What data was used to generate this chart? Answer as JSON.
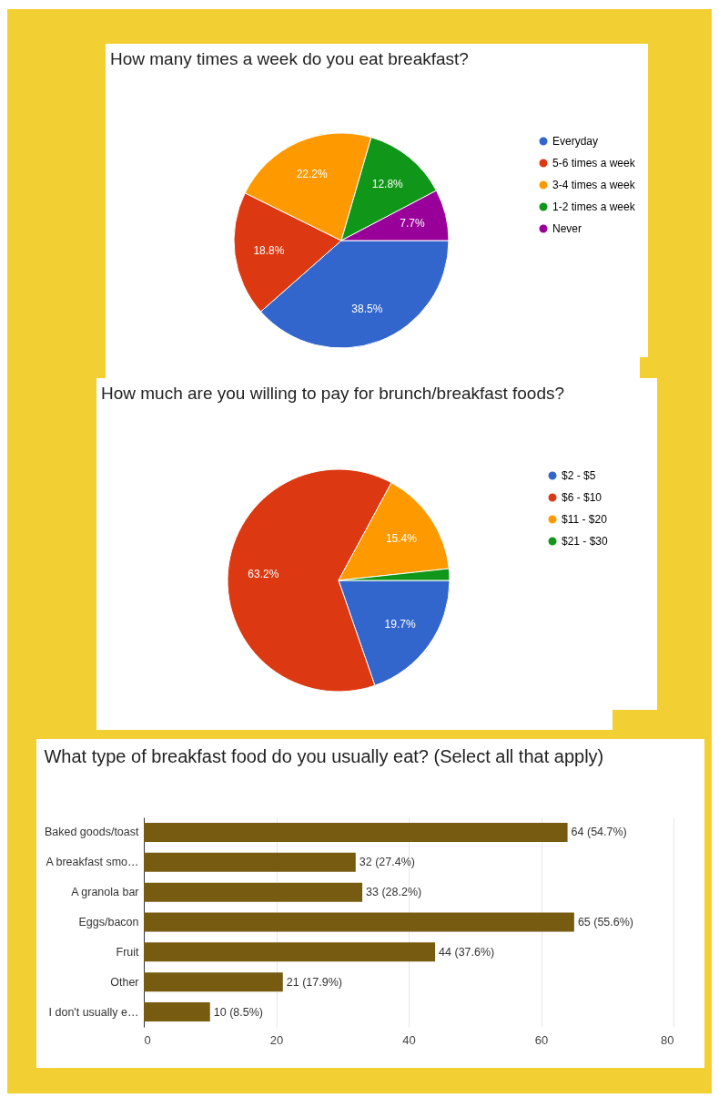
{
  "chart_data": [
    {
      "type": "pie",
      "title": "How many times a week do you eat breakfast?",
      "categories": [
        "Everyday",
        "5-6 times a week",
        "3-4 times a week",
        "1-2 times a week",
        "Never"
      ],
      "values": [
        38.5,
        18.8,
        22.2,
        12.8,
        7.7
      ],
      "colors": [
        "#3366cc",
        "#dc3912",
        "#ff9900",
        "#109618",
        "#990099"
      ],
      "value_labels": [
        "38.5%",
        "18.8%",
        "22.2%",
        "12.8%",
        "7.7%"
      ],
      "legend": "right"
    },
    {
      "type": "pie",
      "title": "How much are you willing to pay for brunch/breakfast foods?",
      "categories": [
        "$2 - $5",
        "$6 - $10",
        "$11 - $20",
        "$21 - $30"
      ],
      "values": [
        19.7,
        63.2,
        15.4,
        1.7
      ],
      "colors": [
        "#3366cc",
        "#dc3912",
        "#ff9900",
        "#109618"
      ],
      "value_labels": [
        "19.7%",
        "63.2%",
        "15.4%",
        null
      ],
      "legend": "right"
    },
    {
      "type": "bar",
      "orientation": "horizontal",
      "title": "What type of breakfast food do you usually eat? (Select all that apply)",
      "categories": [
        "Baked goods/toast",
        "A breakfast smo…",
        "A granola bar",
        "Eggs/bacon",
        "Fruit",
        "Other",
        "I don't usually e…"
      ],
      "values": [
        64,
        32,
        33,
        65,
        44,
        21,
        10
      ],
      "value_labels": [
        "64 (54.7%)",
        "32 (27.4%)",
        "33 (28.2%)",
        "65 (55.6%)",
        "44 (37.6%)",
        "21 (17.9%)",
        "10 (8.5%)"
      ],
      "color": "#775b10",
      "xlim": [
        0,
        80
      ],
      "xticks": [
        0,
        20,
        40,
        60,
        80
      ],
      "grid": "x"
    }
  ]
}
